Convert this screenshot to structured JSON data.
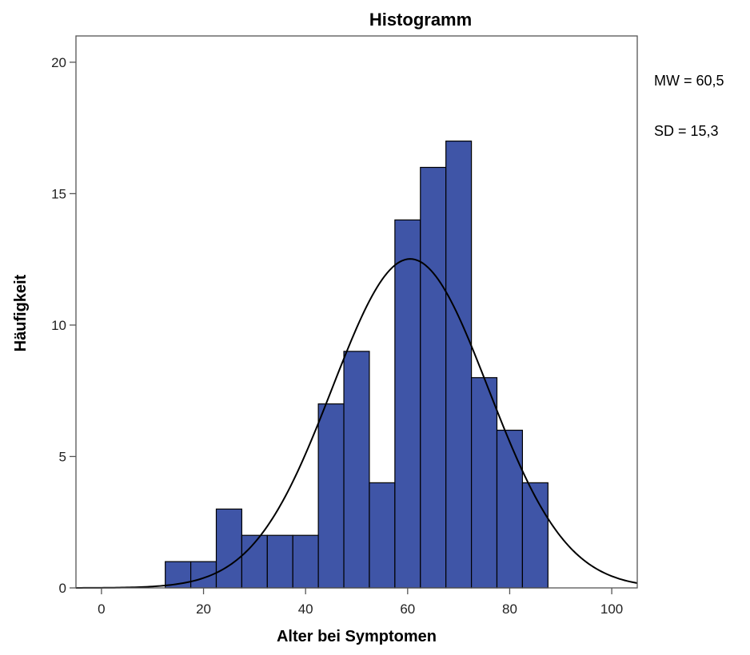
{
  "chart_data": {
    "type": "bar",
    "title": "Histogramm",
    "xlabel": "Alter bei Symptomen",
    "ylabel": "Häufigkeit",
    "xlim": [
      -5,
      105
    ],
    "ylim": [
      0,
      21
    ],
    "x_ticks": [
      0,
      20,
      40,
      60,
      80,
      100
    ],
    "y_ticks": [
      0,
      5,
      10,
      15,
      20
    ],
    "bin_width": 5,
    "bins": [
      {
        "start": 12.5,
        "end": 17.5,
        "value": 1
      },
      {
        "start": 17.5,
        "end": 22.5,
        "value": 1
      },
      {
        "start": 22.5,
        "end": 27.5,
        "value": 3
      },
      {
        "start": 27.5,
        "end": 32.5,
        "value": 2
      },
      {
        "start": 32.5,
        "end": 37.5,
        "value": 2
      },
      {
        "start": 37.5,
        "end": 42.5,
        "value": 2
      },
      {
        "start": 42.5,
        "end": 47.5,
        "value": 7
      },
      {
        "start": 47.5,
        "end": 52.5,
        "value": 9
      },
      {
        "start": 52.5,
        "end": 57.5,
        "value": 4
      },
      {
        "start": 57.5,
        "end": 62.5,
        "value": 14
      },
      {
        "start": 62.5,
        "end": 67.5,
        "value": 16
      },
      {
        "start": 67.5,
        "end": 72.5,
        "value": 17
      },
      {
        "start": 72.5,
        "end": 77.5,
        "value": 8
      },
      {
        "start": 77.5,
        "end": 82.5,
        "value": 6
      },
      {
        "start": 82.5,
        "end": 87.5,
        "value": 4
      }
    ],
    "normal_curve": {
      "mean": 60.5,
      "sd": 15.3,
      "n": 96
    },
    "grid": false,
    "bar_color": "#3f55a7",
    "stats": {
      "mean_label": "MW = 60,5",
      "sd_label": "SD = 15,3"
    }
  }
}
